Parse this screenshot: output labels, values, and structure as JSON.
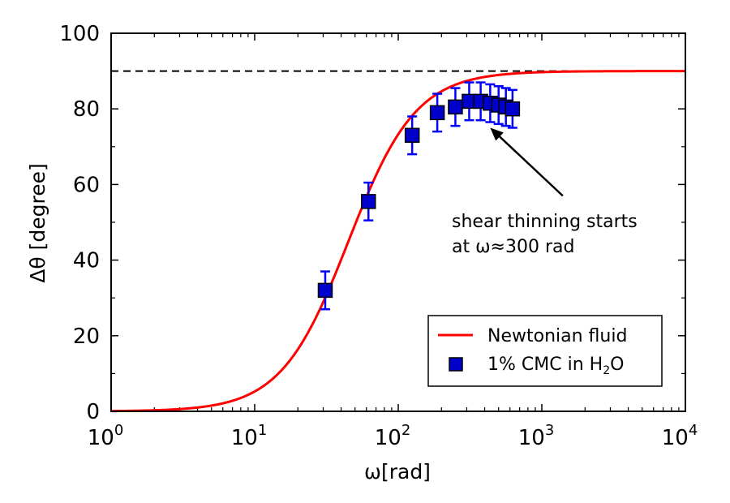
{
  "chart_data": {
    "type": "scatter",
    "title": "",
    "xlabel": "ω[rad]",
    "ylabel": "Δθ [degree]",
    "xscale": "log",
    "xlim": [
      1,
      10000
    ],
    "ylim": [
      0,
      100
    ],
    "x_ticks": [
      {
        "value": 1,
        "base": "10",
        "exp": "0"
      },
      {
        "value": 10,
        "base": "10",
        "exp": "1"
      },
      {
        "value": 100,
        "base": "10",
        "exp": "2"
      },
      {
        "value": 1000,
        "base": "10",
        "exp": "3"
      },
      {
        "value": 10000,
        "base": "10",
        "exp": "4"
      }
    ],
    "y_ticks": [
      0,
      20,
      40,
      60,
      80,
      100
    ],
    "grid": false,
    "reference_line": {
      "y": 90,
      "style": "dashed",
      "color": "#000000"
    },
    "series": [
      {
        "name": "Newtonian fluid",
        "kind": "line",
        "color": "#ff0000",
        "model": {
          "max": 90,
          "x_half": 45,
          "exponent": 1.85
        }
      },
      {
        "name": "1% CMC in H2O",
        "kind": "markers",
        "color": "#0000ff",
        "marker_fill": "#0000cc",
        "points": [
          {
            "x": 31,
            "y": 32,
            "err": 5
          },
          {
            "x": 62,
            "y": 55.5,
            "err": 5
          },
          {
            "x": 125,
            "y": 73,
            "err": 5
          },
          {
            "x": 187,
            "y": 79,
            "err": 5
          },
          {
            "x": 250,
            "y": 80.5,
            "err": 5
          },
          {
            "x": 312,
            "y": 82,
            "err": 5
          },
          {
            "x": 375,
            "y": 82,
            "err": 5
          },
          {
            "x": 437,
            "y": 81.5,
            "err": 5
          },
          {
            "x": 500,
            "y": 81,
            "err": 5
          },
          {
            "x": 562,
            "y": 80.5,
            "err": 5
          },
          {
            "x": 625,
            "y": 80,
            "err": 5
          }
        ]
      }
    ],
    "annotation": {
      "line1": "shear thinning starts",
      "line2": "at ω≈300 rad",
      "arrow_to": {
        "x": 437,
        "y": 75
      },
      "arrow_from": {
        "x": 1400,
        "y": 57
      }
    },
    "legend": {
      "position": "bottom-right",
      "entry1": "Newtonian fluid",
      "entry2_prefix": "1% CMC in H",
      "entry2_sub": "2",
      "entry2_suffix": "O"
    }
  }
}
